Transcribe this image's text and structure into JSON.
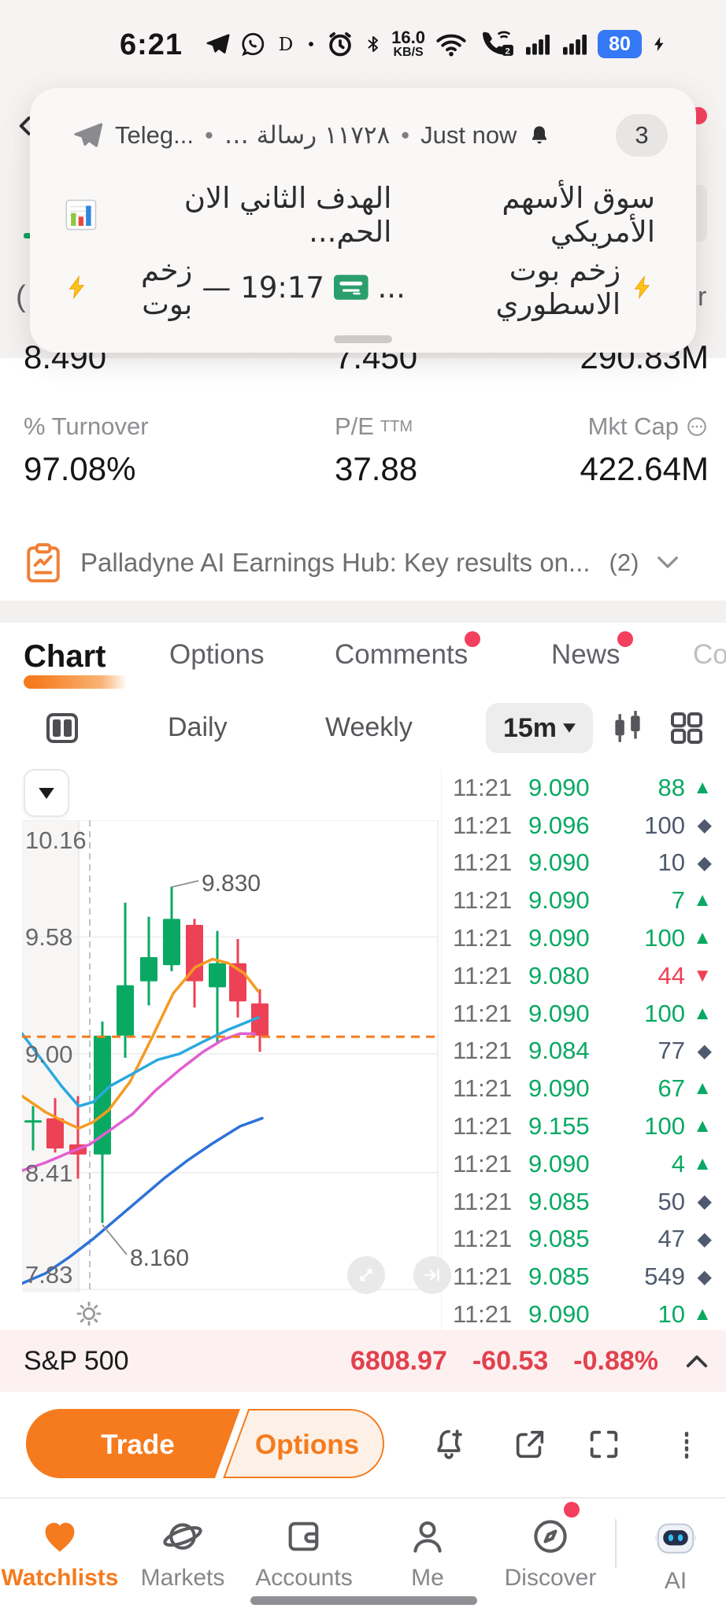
{
  "colors": {
    "accent_orange": "#f57b1e",
    "up_green": "#09a963",
    "down_red": "#ed4156",
    "neutral_diamond": "#4f5a6e",
    "sp_red": "#e2414e",
    "battery_blue": "#3478f6"
  },
  "status_bar": {
    "time": "6:21",
    "items": [
      {
        "kind": "icon",
        "name": "telegram-icon"
      },
      {
        "kind": "icon",
        "name": "whatsapp-icon"
      },
      {
        "kind": "icon",
        "name": "letter-d-icon"
      },
      {
        "kind": "icon",
        "name": "dot-icon"
      },
      {
        "kind": "icon",
        "name": "alarm-icon"
      },
      {
        "kind": "icon",
        "name": "bluetooth-icon"
      },
      {
        "kind": "speed",
        "value": "16.0",
        "unit": "KB/S"
      },
      {
        "kind": "icon",
        "name": "wifi-icon"
      },
      {
        "kind": "icon",
        "name": "wifi-call-icon"
      },
      {
        "kind": "icon",
        "name": "signal-bars-icon"
      },
      {
        "kind": "icon",
        "name": "signal-bars-icon"
      },
      {
        "kind": "battery",
        "value": "80"
      },
      {
        "kind": "icon",
        "name": "charging-icon"
      }
    ]
  },
  "notification": {
    "app_name": "Teleg...",
    "separator": "•",
    "meta_rtl": "١١٧٢٨ رسالة …",
    "time_label": "Just now",
    "badge_count": "3",
    "line1": {
      "channel": "سوق الأسهم الأمريكي",
      "message": "الهدف الثاني الان الحم...",
      "icon": "chart-emoji-icon"
    },
    "line2": {
      "parts": [
        {
          "type": "icon",
          "name": "bolt-emoji-icon"
        },
        {
          "type": "text",
          "value": "زخم بوت الاسطوري"
        },
        {
          "type": "text",
          "value": "..."
        },
        {
          "type": "icon",
          "name": "saudi-flag-icon"
        },
        {
          "type": "text",
          "value": "19:17"
        },
        {
          "type": "text",
          "value": "—"
        },
        {
          "type": "text",
          "value": "زخم بوت"
        },
        {
          "type": "icon",
          "name": "bolt-emoji-icon"
        }
      ]
    }
  },
  "fragments": {
    "paren": "(",
    "letter_r": "r"
  },
  "stats": {
    "row1": [
      "8.490",
      "7.450",
      "290.83M"
    ],
    "row2": [
      {
        "label": "% Turnover",
        "value": "97.08%"
      },
      {
        "label": "P/E",
        "sup": "TTM",
        "value": "37.88"
      },
      {
        "label": "Mkt Cap",
        "icon": "ellipsis-circle-icon",
        "value": "422.64M"
      }
    ]
  },
  "banner": {
    "text": "Palladyne AI Earnings Hub: Key results on...",
    "count": "(2)"
  },
  "tabs": [
    {
      "label": "Chart",
      "active": true
    },
    {
      "label": "Options"
    },
    {
      "label": "Comments",
      "dot": true
    },
    {
      "label": "News",
      "dot": true
    },
    {
      "label": "Co",
      "partial": true
    }
  ],
  "toolbar": {
    "periods": [
      "Daily",
      "Weekly"
    ],
    "interval": "15m"
  },
  "chart_data": {
    "type": "candlestick",
    "interval": "15m",
    "ylim": [
      7.815,
      10.16
    ],
    "y_ticks": [
      "10.16",
      "9.58",
      "9.00",
      "8.41",
      "7.83"
    ],
    "tick_prices": [
      10.16,
      9.58,
      9.0,
      8.41,
      7.83
    ],
    "current_price": 9.085,
    "session_band_end_x": 72,
    "session_split_x": 86,
    "candles": [
      {
        "x": 14,
        "o": 8.66,
        "h": 8.74,
        "l": 8.52,
        "c": 8.67
      },
      {
        "x": 42,
        "o": 8.68,
        "h": 8.78,
        "l": 8.51,
        "c": 8.53
      },
      {
        "x": 71,
        "o": 8.55,
        "h": 8.79,
        "l": 8.38,
        "c": 8.5
      },
      {
        "x": 102,
        "o": 8.5,
        "h": 9.16,
        "l": 8.16,
        "c": 9.09
      },
      {
        "x": 131,
        "o": 9.09,
        "h": 9.75,
        "l": 8.98,
        "c": 9.34
      },
      {
        "x": 161,
        "o": 9.36,
        "h": 9.68,
        "l": 9.24,
        "c": 9.48
      },
      {
        "x": 190,
        "o": 9.44,
        "h": 9.83,
        "l": 9.41,
        "c": 9.67
      },
      {
        "x": 219,
        "o": 9.64,
        "h": 9.67,
        "l": 9.23,
        "c": 9.36
      },
      {
        "x": 248,
        "o": 9.33,
        "h": 9.61,
        "l": 9.05,
        "c": 9.45
      },
      {
        "x": 274,
        "o": 9.45,
        "h": 9.57,
        "l": 9.18,
        "c": 9.26
      },
      {
        "x": 302,
        "o": 9.25,
        "h": 9.32,
        "l": 9.01,
        "c": 9.09
      }
    ],
    "ma_lines": [
      {
        "name": "ma-orange",
        "color": "#f59b22",
        "points": [
          [
            0,
            8.79
          ],
          [
            30,
            8.71
          ],
          [
            55,
            8.66
          ],
          [
            72,
            8.63
          ],
          [
            90,
            8.66
          ],
          [
            110,
            8.72
          ],
          [
            137,
            8.86
          ],
          [
            165,
            9.08
          ],
          [
            192,
            9.3
          ],
          [
            220,
            9.43
          ],
          [
            242,
            9.47
          ],
          [
            262,
            9.45
          ],
          [
            282,
            9.4
          ],
          [
            300,
            9.31
          ]
        ]
      },
      {
        "name": "ma-cyan",
        "color": "#29a9e0",
        "points": [
          [
            0,
            9.1
          ],
          [
            25,
            8.97
          ],
          [
            50,
            8.84
          ],
          [
            72,
            8.74
          ],
          [
            90,
            8.76
          ],
          [
            112,
            8.84
          ],
          [
            140,
            8.9
          ],
          [
            172,
            8.97
          ],
          [
            200,
            9.0
          ],
          [
            230,
            9.06
          ],
          [
            262,
            9.12
          ],
          [
            300,
            9.18
          ]
        ]
      },
      {
        "name": "ma-magenta",
        "color": "#e25fd2",
        "points": [
          [
            0,
            8.42
          ],
          [
            30,
            8.46
          ],
          [
            60,
            8.51
          ],
          [
            86,
            8.55
          ],
          [
            115,
            8.63
          ],
          [
            140,
            8.7
          ],
          [
            170,
            8.82
          ],
          [
            200,
            8.92
          ],
          [
            230,
            9.01
          ],
          [
            255,
            9.07
          ],
          [
            277,
            9.1
          ],
          [
            295,
            9.1
          ]
        ]
      },
      {
        "name": "ma-blue",
        "color": "#2d72d9",
        "points": [
          [
            0,
            7.86
          ],
          [
            30,
            7.91
          ],
          [
            60,
            7.99
          ],
          [
            90,
            8.08
          ],
          [
            120,
            8.18
          ],
          [
            150,
            8.28
          ],
          [
            180,
            8.38
          ],
          [
            210,
            8.47
          ],
          [
            240,
            8.55
          ],
          [
            277,
            8.64
          ],
          [
            305,
            8.68
          ]
        ]
      }
    ],
    "annotations": [
      {
        "text": "9.830",
        "line": [
          [
            190,
            85
          ],
          [
            224,
            77
          ]
        ],
        "pos": [
          228,
          88
        ]
      },
      {
        "text": "8.160",
        "line": [
          [
            102,
            514
          ],
          [
            133,
            552
          ]
        ],
        "pos": [
          137,
          564
        ]
      }
    ]
  },
  "time_sales": {
    "rows": [
      {
        "t": "11:21",
        "p": "9.090",
        "s": "88",
        "d": "up"
      },
      {
        "t": "11:21",
        "p": "9.096",
        "s": "100",
        "d": "flat"
      },
      {
        "t": "11:21",
        "p": "9.090",
        "s": "10",
        "d": "flat"
      },
      {
        "t": "11:21",
        "p": "9.090",
        "s": "7",
        "d": "up"
      },
      {
        "t": "11:21",
        "p": "9.090",
        "s": "100",
        "d": "up"
      },
      {
        "t": "11:21",
        "p": "9.080",
        "s": "44",
        "d": "down"
      },
      {
        "t": "11:21",
        "p": "9.090",
        "s": "100",
        "d": "up"
      },
      {
        "t": "11:21",
        "p": "9.084",
        "s": "77",
        "d": "flat"
      },
      {
        "t": "11:21",
        "p": "9.090",
        "s": "67",
        "d": "up"
      },
      {
        "t": "11:21",
        "p": "9.155",
        "s": "100",
        "d": "up"
      },
      {
        "t": "11:21",
        "p": "9.090",
        "s": "4",
        "d": "up"
      },
      {
        "t": "11:21",
        "p": "9.085",
        "s": "50",
        "d": "flat"
      },
      {
        "t": "11:21",
        "p": "9.085",
        "s": "47",
        "d": "flat"
      },
      {
        "t": "11:21",
        "p": "9.085",
        "s": "549",
        "d": "flat"
      },
      {
        "t": "11:21",
        "p": "9.090",
        "s": "10",
        "d": "up"
      }
    ]
  },
  "sp500": {
    "label": "S&P 500",
    "value": "6808.97",
    "change": "-60.53",
    "change_pct": "-0.88%"
  },
  "trade_bar": {
    "trade": "Trade",
    "options": "Options"
  },
  "bottom_nav": {
    "items": [
      {
        "label": "Watchlists",
        "icon": "heart-icon",
        "active": true
      },
      {
        "label": "Markets",
        "icon": "planet-icon"
      },
      {
        "label": "Accounts",
        "icon": "wallet-icon"
      },
      {
        "label": "Me",
        "icon": "person-icon"
      },
      {
        "label": "Discover",
        "icon": "compass-icon",
        "dot": true
      },
      {
        "label": "AI",
        "icon": "robot-icon"
      }
    ]
  }
}
